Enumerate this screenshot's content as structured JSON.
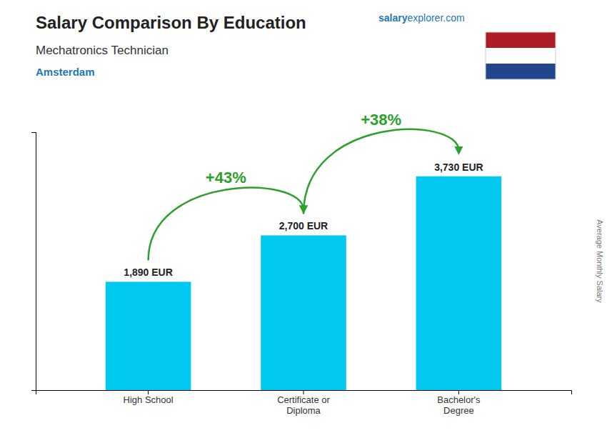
{
  "chart_data": {
    "type": "bar",
    "title": "Salary Comparison By Education",
    "subtitle": "Mechatronics Technician",
    "city": "Amsterdam",
    "watermark": [
      "salary",
      "explorer",
      ".com"
    ],
    "ylabel": "Average Monthly Salary",
    "categories": [
      "High School",
      "Certificate or\nDiploma",
      "Bachelor's\nDegree"
    ],
    "values": [
      1890,
      2700,
      3730
    ],
    "value_labels": [
      "1,890 EUR",
      "2,700 EUR",
      "3,730 EUR"
    ],
    "data_labels": true,
    "annotations": [
      "+43%",
      "+38%"
    ],
    "color": "#00c8f0",
    "ylim": [
      0,
      4500
    ],
    "grid": false,
    "tick_labels": "x"
  }
}
